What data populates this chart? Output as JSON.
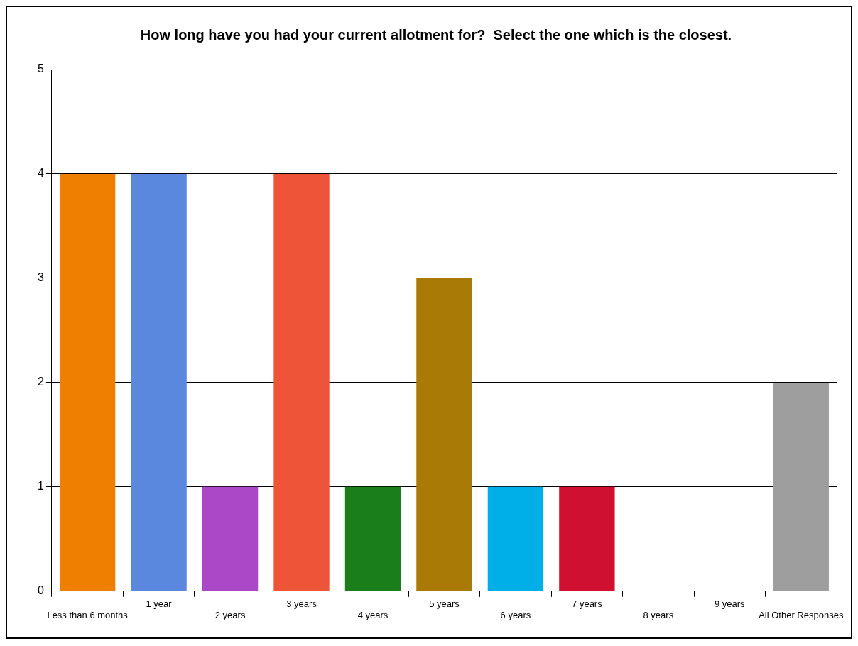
{
  "chart_data": {
    "type": "bar",
    "title": "How long have you had your current allotment for?  Select the one which is the closest.",
    "categories": [
      "Less than 6 months",
      "1 year",
      "2 years",
      "3 years",
      "4 years",
      "5 years",
      "6 years",
      "7 years",
      "8 years",
      "9 years",
      "All Other Responses"
    ],
    "values": [
      4,
      4,
      1,
      4,
      1,
      3,
      1,
      1,
      0,
      0,
      2
    ],
    "colors": [
      "#ee7f00",
      "#5a88de",
      "#aa48c8",
      "#ee5538",
      "#1a7f1a",
      "#aa7a06",
      "#00aee8",
      "#d01030",
      "#888888",
      "#888888",
      "#9e9e9e"
    ],
    "ylim": [
      0,
      5
    ],
    "yticks": [
      0,
      1,
      2,
      3,
      4,
      5
    ],
    "grid": "y",
    "legend": false
  }
}
